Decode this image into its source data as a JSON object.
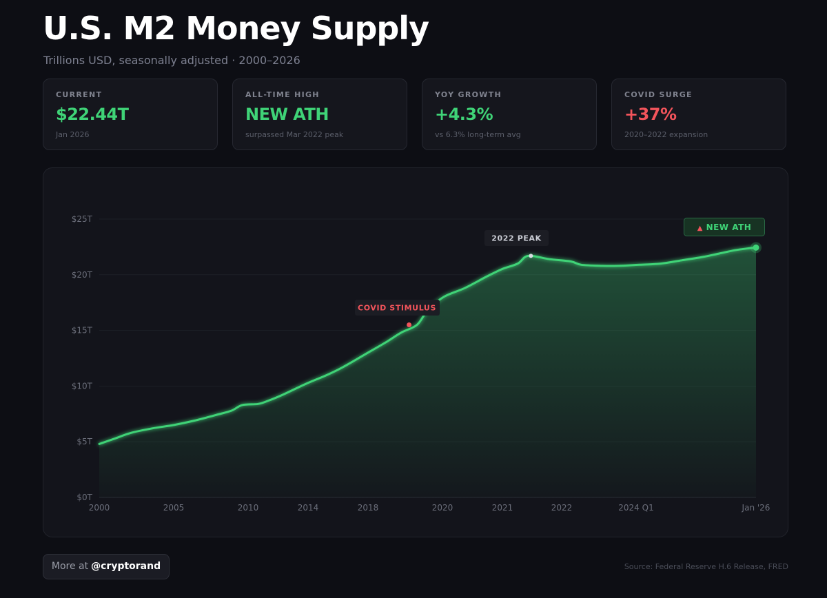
{
  "header": {
    "title": "U.S. M2 Money Supply",
    "subtitle": "Trillions USD, seasonally adjusted · 2000–2026"
  },
  "stats": [
    {
      "label": "CURRENT",
      "value": "$22.44T",
      "sub": "Jan 2026",
      "tone": "green"
    },
    {
      "label": "ALL-TIME HIGH",
      "value": "NEW ATH",
      "sub": "surpassed Mar 2022 peak",
      "tone": "green"
    },
    {
      "label": "YOY GROWTH",
      "value": "+4.3%",
      "sub": "vs 6.3% long-term avg",
      "tone": "green"
    },
    {
      "label": "COVID SURGE",
      "value": "+37%",
      "sub": "2020–2022 expansion",
      "tone": "red"
    }
  ],
  "chart_data": {
    "type": "area",
    "ylabel": "Trillions USD",
    "ylim": [
      0,
      25
    ],
    "y_ticks": [
      {
        "value": 25,
        "label": "$25T"
      },
      {
        "value": 20,
        "label": "$20T"
      },
      {
        "value": 15,
        "label": "$15T"
      },
      {
        "value": 10,
        "label": "$10T"
      },
      {
        "value": 5,
        "label": "$5T"
      },
      {
        "value": 0,
        "label": "$0T"
      }
    ],
    "x_tick_labels": [
      "2000",
      "2005",
      "2010",
      "2014",
      "2018",
      "2020",
      "2021",
      "2022",
      "2024 Q1",
      "Jan '26"
    ],
    "series": [
      {
        "name": "M2",
        "points": [
          {
            "x": 0.0,
            "y": 4.8
          },
          {
            "x": 0.3,
            "y": 5.3
          },
          {
            "x": 0.6,
            "y": 5.8
          },
          {
            "x": 1.0,
            "y": 6.2
          },
          {
            "x": 1.4,
            "y": 6.5
          },
          {
            "x": 1.8,
            "y": 6.9
          },
          {
            "x": 2.2,
            "y": 7.4
          },
          {
            "x": 2.5,
            "y": 7.8
          },
          {
            "x": 2.7,
            "y": 8.3
          },
          {
            "x": 3.0,
            "y": 8.4
          },
          {
            "x": 3.2,
            "y": 8.7
          },
          {
            "x": 3.5,
            "y": 9.3
          },
          {
            "x": 3.9,
            "y": 10.2
          },
          {
            "x": 4.3,
            "y": 11.0
          },
          {
            "x": 4.6,
            "y": 11.7
          },
          {
            "x": 5.0,
            "y": 12.8
          },
          {
            "x": 5.4,
            "y": 13.9
          },
          {
            "x": 5.7,
            "y": 14.8
          },
          {
            "x": 6.0,
            "y": 15.5
          },
          {
            "x": 6.2,
            "y": 16.8
          },
          {
            "x": 6.5,
            "y": 18.0
          },
          {
            "x": 6.9,
            "y": 18.8
          },
          {
            "x": 7.3,
            "y": 19.8
          },
          {
            "x": 7.6,
            "y": 20.5
          },
          {
            "x": 7.9,
            "y": 21.0
          },
          {
            "x": 8.1,
            "y": 21.7
          },
          {
            "x": 8.5,
            "y": 21.4
          },
          {
            "x": 8.9,
            "y": 21.2
          },
          {
            "x": 9.1,
            "y": 20.9
          },
          {
            "x": 9.5,
            "y": 20.8
          },
          {
            "x": 9.8,
            "y": 20.8
          },
          {
            "x": 10.2,
            "y": 20.9
          },
          {
            "x": 10.6,
            "y": 21.0
          },
          {
            "x": 11.0,
            "y": 21.3
          },
          {
            "x": 11.4,
            "y": 21.6
          },
          {
            "x": 11.7,
            "y": 21.9
          },
          {
            "x": 12.0,
            "y": 22.2
          },
          {
            "x": 12.3,
            "y": 22.4
          },
          {
            "x": 12.4,
            "y": 22.44
          }
        ]
      }
    ],
    "annotations": [
      {
        "label": "COVID STIMULUS",
        "x": 5.85,
        "y": 15.5,
        "tone": "red"
      },
      {
        "label": "2022 PEAK",
        "x": 8.15,
        "y": 21.7,
        "tone": "neutral"
      },
      {
        "label": "▲ NEW ATH",
        "x": 12.4,
        "y": 22.44,
        "tone": "green"
      }
    ]
  },
  "footer": {
    "more_at": "More at",
    "handle": "@cryptorand",
    "source": "Source: Federal Reserve H.6 Release, FRED"
  },
  "colors": {
    "line": "#3fd377",
    "covid": "#f2545b",
    "background": "#0d0e14"
  }
}
